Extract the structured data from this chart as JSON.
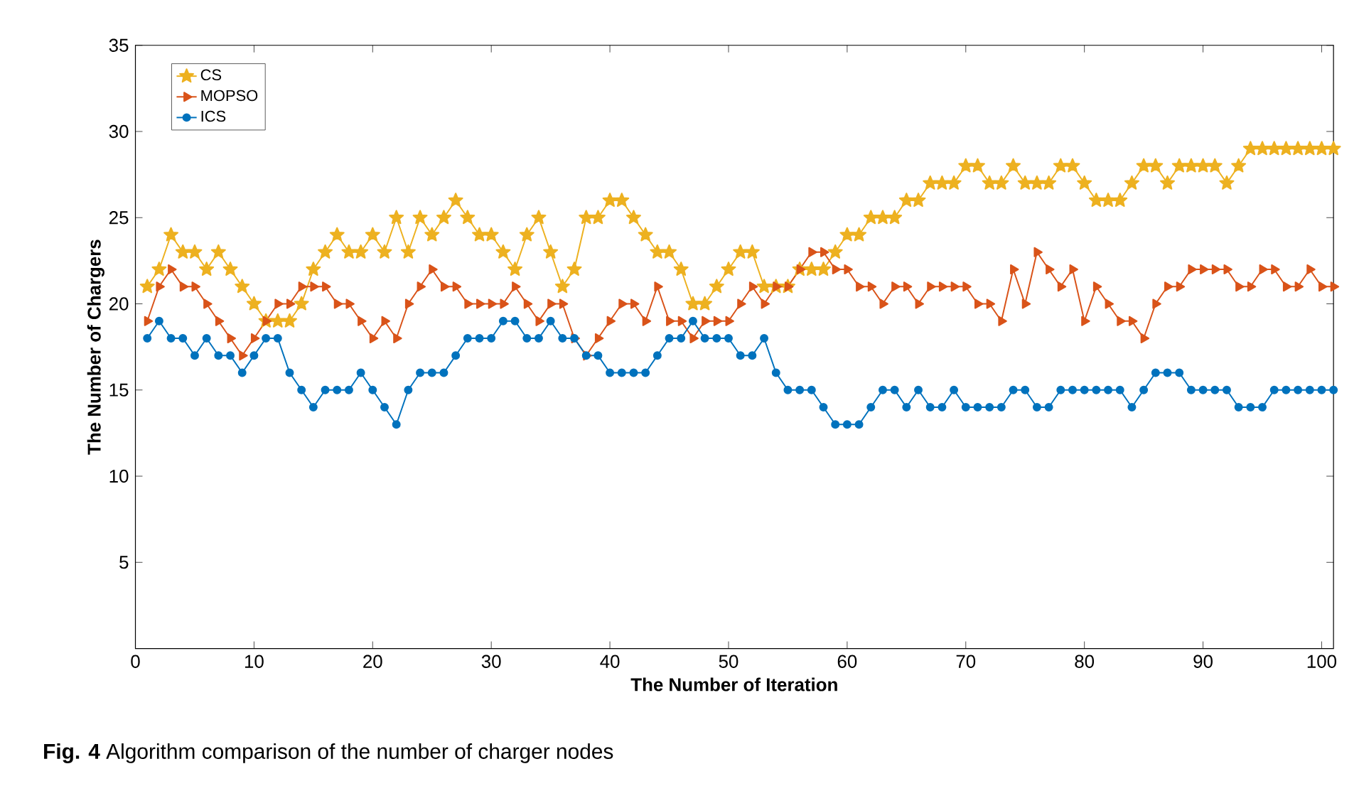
{
  "chart_data": {
    "type": "line",
    "xlabel": "The Number of Iteration",
    "ylabel": "The Number of Chargers",
    "annotations": [
      "**Fig. 4** Algorithm comparison of the number of charger nodes"
    ],
    "x": [
      1,
      2,
      3,
      4,
      5,
      6,
      7,
      8,
      9,
      10,
      11,
      12,
      13,
      14,
      15,
      16,
      17,
      18,
      19,
      20,
      21,
      22,
      23,
      24,
      25,
      26,
      27,
      28,
      29,
      30,
      31,
      32,
      33,
      34,
      35,
      36,
      37,
      38,
      39,
      40,
      41,
      42,
      43,
      44,
      45,
      46,
      47,
      48,
      49,
      50,
      51,
      52,
      53,
      54,
      55,
      56,
      57,
      58,
      59,
      60,
      61,
      62,
      63,
      64,
      65,
      66,
      67,
      68,
      69,
      70,
      71,
      72,
      73,
      74,
      75,
      76,
      77,
      78,
      79,
      80,
      81,
      82,
      83,
      84,
      85,
      86,
      87,
      88,
      89,
      90,
      91,
      92,
      93,
      94,
      95,
      96,
      97,
      98,
      99,
      100,
      101
    ],
    "xlim": [
      0,
      101
    ],
    "xticks": [
      0,
      10,
      20,
      30,
      40,
      50,
      60,
      70,
      80,
      90,
      100
    ],
    "ylim": [
      0,
      35
    ],
    "yticks": [
      5,
      10,
      15,
      20,
      25,
      30,
      35
    ],
    "grid": false,
    "legend": "top left",
    "series": [
      {
        "name": "CS",
        "color": "#edb120",
        "marker": "star",
        "values": [
          21,
          22,
          24,
          23,
          23,
          22,
          23,
          22,
          21,
          20,
          19,
          19,
          19,
          20,
          22,
          23,
          24,
          23,
          23,
          24,
          23,
          25,
          23,
          25,
          24,
          25,
          26,
          25,
          24,
          24,
          23,
          22,
          24,
          25,
          23,
          21,
          22,
          25,
          25,
          26,
          26,
          25,
          24,
          23,
          23,
          22,
          20,
          20,
          21,
          22,
          23,
          23,
          21,
          21,
          21,
          22,
          22,
          22,
          23,
          24,
          24,
          25,
          25,
          25,
          26,
          26,
          27,
          27,
          27,
          28,
          28,
          27,
          27,
          28,
          27,
          27,
          27,
          28,
          28,
          27,
          26,
          26,
          26,
          27,
          28,
          28,
          27,
          28,
          28,
          28,
          28,
          27,
          28,
          29,
          29,
          29,
          29,
          29,
          29,
          29,
          29
        ]
      },
      {
        "name": "MOPSO",
        "color": "#d95319",
        "marker": "triangle",
        "values": [
          19,
          21,
          22,
          21,
          21,
          20,
          19,
          18,
          17,
          18,
          19,
          20,
          20,
          21,
          21,
          21,
          20,
          20,
          19,
          18,
          19,
          18,
          20,
          21,
          22,
          21,
          21,
          20,
          20,
          20,
          20,
          21,
          20,
          19,
          20,
          20,
          18,
          17,
          18,
          19,
          20,
          20,
          19,
          21,
          19,
          19,
          18,
          19,
          19,
          19,
          20,
          21,
          20,
          21,
          21,
          22,
          23,
          23,
          22,
          22,
          21,
          21,
          20,
          21,
          21,
          20,
          21,
          21,
          21,
          21,
          20,
          20,
          19,
          22,
          20,
          23,
          22,
          21,
          22,
          19,
          21,
          20,
          19,
          19,
          18,
          20,
          21,
          21,
          22,
          22,
          22,
          22,
          21,
          21,
          22,
          22,
          21,
          21,
          22,
          21,
          21
        ]
      },
      {
        "name": "ICS",
        "color": "#0072bd",
        "marker": "circle",
        "values": [
          18,
          19,
          18,
          18,
          17,
          18,
          17,
          17,
          16,
          17,
          18,
          18,
          16,
          15,
          14,
          15,
          15,
          15,
          16,
          15,
          14,
          13,
          15,
          16,
          16,
          16,
          17,
          18,
          18,
          18,
          19,
          19,
          18,
          18,
          19,
          18,
          18,
          17,
          17,
          16,
          16,
          16,
          16,
          17,
          18,
          18,
          19,
          18,
          18,
          18,
          17,
          17,
          18,
          16,
          15,
          15,
          15,
          14,
          13,
          13,
          13,
          14,
          15,
          15,
          14,
          15,
          14,
          14,
          15,
          14,
          14,
          14,
          14,
          15,
          15,
          14,
          14,
          15,
          15,
          15,
          15,
          15,
          15,
          14,
          15,
          16,
          16,
          16,
          15,
          15,
          15,
          15,
          14,
          14,
          14,
          15,
          15,
          15,
          15,
          15,
          15
        ]
      }
    ]
  }
}
